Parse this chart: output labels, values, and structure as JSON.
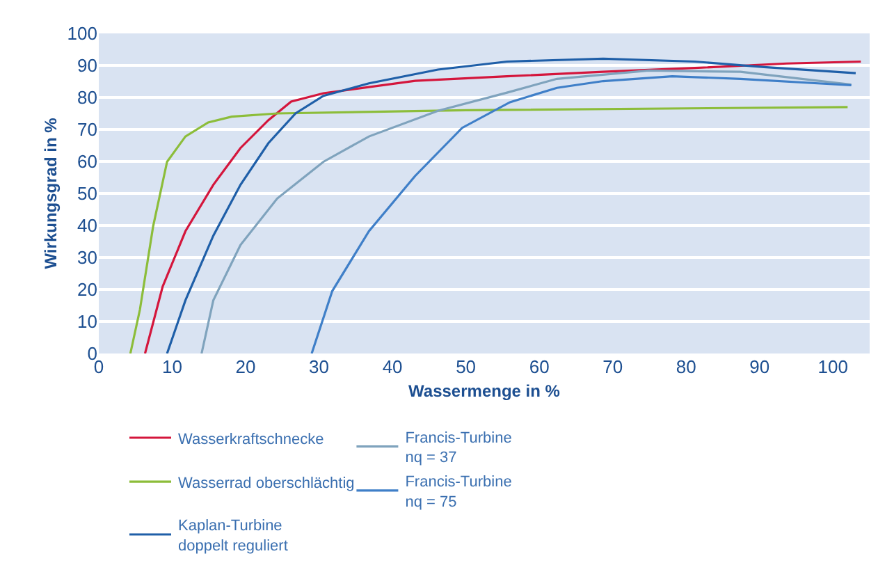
{
  "chart_data": {
    "type": "line",
    "xlabel": "Wassermenge in %",
    "ylabel": "Wirkungsgrad in %",
    "xlim": [
      0,
      105
    ],
    "xticks": [
      0,
      10,
      20,
      30,
      40,
      50,
      60,
      70,
      80,
      90,
      100
    ],
    "ylim": [
      0,
      100
    ],
    "yticks": [
      0,
      10,
      20,
      30,
      40,
      50,
      60,
      70,
      80,
      90,
      100
    ],
    "grid": "y",
    "legend": "bottom",
    "marker": "none",
    "line_style": "solid",
    "series": [
      {
        "name": "Wasserkraftschnecke",
        "color": "#d4163c",
        "x": [
          6.3,
          8.7,
          11.8,
          15.6,
          19.3,
          23.1,
          26.2,
          30.6,
          43.1,
          55.6,
          68.7,
          81.2,
          93.7,
          103.8
        ],
        "values": [
          0,
          20.9,
          38.2,
          52.7,
          64.2,
          72.9,
          78.7,
          81.3,
          85.2,
          86.6,
          88,
          89.2,
          90.6,
          91.2
        ]
      },
      {
        "name": "Wasserrad oberschlächtig",
        "color": "#8cbd3a",
        "x": [
          4.3,
          5.6,
          7.4,
          9.3,
          11.8,
          14.9,
          18.1,
          24.3,
          50,
          102
        ],
        "values": [
          0,
          13.7,
          39.7,
          59.9,
          67.8,
          72.2,
          74,
          75,
          76,
          77
        ]
      },
      {
        "name": "Kaplan-Turbine\ndoppelt reguliert",
        "color": "#1f5fa8",
        "x": [
          9.3,
          11.8,
          15.6,
          19.3,
          23.1,
          26.8,
          30.6,
          36.8,
          46.2,
          55.6,
          68.7,
          81.2,
          90.6,
          103.1
        ],
        "values": [
          0,
          16.6,
          36.8,
          52.7,
          65.7,
          75,
          80.5,
          84.4,
          88.7,
          91.2,
          92.1,
          91.2,
          89.5,
          87.6
        ]
      },
      {
        "name": "Francis-Turbine\nnq = 37",
        "color": "#7fa3bd",
        "x": [
          14,
          15.6,
          19.3,
          24.3,
          30.6,
          36.8,
          46.2,
          55.6,
          62.4,
          74.9,
          87.4,
          102.5
        ],
        "values": [
          0,
          16.6,
          33.9,
          48.4,
          59.9,
          67.8,
          75.8,
          81.5,
          85.8,
          88.4,
          88,
          84
        ]
      },
      {
        "name": "Francis-Turbine\nnq = 75",
        "color": "#3f7fc8",
        "x": [
          29,
          31.8,
          36.8,
          43.1,
          49.5,
          56,
          62.4,
          68.7,
          78.1,
          87.4,
          102.5
        ],
        "values": [
          0,
          19.5,
          38.2,
          55.5,
          70.5,
          78.5,
          83,
          85.1,
          86.6,
          85.8,
          83.8
        ]
      }
    ]
  }
}
